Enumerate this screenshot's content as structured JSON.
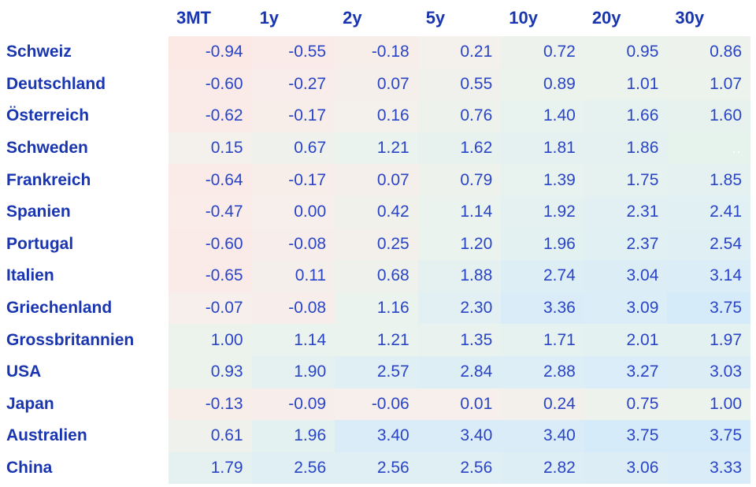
{
  "chart_data": {
    "type": "heatmap",
    "title": "",
    "x_labels": [
      "3MT",
      "1y",
      "2y",
      "5y",
      "10y",
      "20y",
      "30y"
    ],
    "y_labels": [
      "Schweiz",
      "Deutschland",
      "Österreich",
      "Schweden",
      "Frankreich",
      "Spanien",
      "Portugal",
      "Italien",
      "Griechenland",
      "Grossbritannien",
      "USA",
      "Japan",
      "Australien",
      "China"
    ],
    "values": [
      [
        -0.94,
        -0.55,
        -0.18,
        0.21,
        0.72,
        0.95,
        0.86
      ],
      [
        -0.6,
        -0.27,
        0.07,
        0.55,
        0.89,
        1.01,
        1.07
      ],
      [
        -0.62,
        -0.17,
        0.16,
        0.76,
        1.4,
        1.66,
        1.6
      ],
      [
        0.15,
        0.67,
        1.21,
        1.62,
        1.81,
        1.86,
        null
      ],
      [
        -0.64,
        -0.17,
        0.07,
        0.79,
        1.39,
        1.75,
        1.85
      ],
      [
        -0.47,
        0.0,
        0.42,
        1.14,
        1.92,
        2.31,
        2.41
      ],
      [
        -0.6,
        -0.08,
        0.25,
        1.2,
        1.96,
        2.37,
        2.54
      ],
      [
        -0.65,
        0.11,
        0.68,
        1.88,
        2.74,
        3.04,
        3.14
      ],
      [
        -0.07,
        -0.08,
        1.16,
        2.3,
        3.36,
        3.09,
        3.75
      ],
      [
        1.0,
        1.14,
        1.21,
        1.35,
        1.71,
        2.01,
        1.97
      ],
      [
        0.93,
        1.9,
        2.57,
        2.84,
        2.88,
        3.27,
        3.03
      ],
      [
        -0.13,
        -0.09,
        -0.06,
        0.01,
        0.24,
        0.75,
        1.0
      ],
      [
        0.61,
        1.96,
        3.4,
        3.4,
        3.4,
        3.75,
        3.75
      ],
      [
        1.79,
        2.56,
        2.56,
        2.56,
        2.82,
        3.06,
        3.33
      ]
    ],
    "value_range": [
      -0.94,
      3.75
    ],
    "grid": false,
    "legend": false
  },
  "heatmap": {
    "stops": [
      {
        "v": -0.94,
        "c": "#fce9e6"
      },
      {
        "v": 0.0,
        "c": "#f6efeb"
      },
      {
        "v": 1.0,
        "c": "#ebf3ec"
      },
      {
        "v": 2.0,
        "c": "#e4f1f1"
      },
      {
        "v": 3.75,
        "c": "#d6ebfa"
      }
    ],
    "empty_bg": "#e6f2ec"
  },
  "colors": {
    "header_text": "#1a35b0",
    "label_text": "#1a35b0",
    "value_text": "#2a44c6",
    "page_bg": "#ffffff"
  },
  "misc": {
    "empty_cell_mark": "..",
    "number_decimals": 2
  }
}
